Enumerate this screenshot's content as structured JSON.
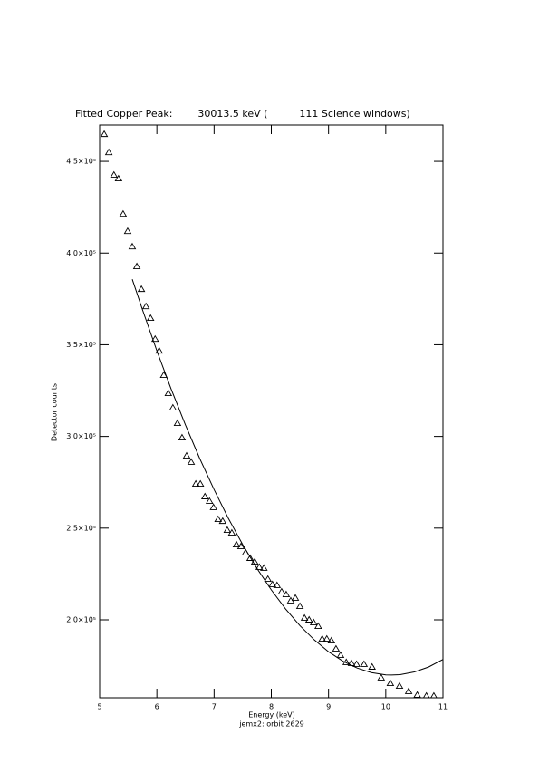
{
  "chart_data": {
    "type": "scatter",
    "title": "Fitted Copper Peak:        30013.5 keV (          111 Science windows)",
    "xlabel": "Energy (keV)",
    "subtitle": "jemx2: orbit 2629",
    "ylabel": "Detector counts",
    "xlim": [
      5,
      11
    ],
    "xticks": [
      5,
      6,
      7,
      8,
      9,
      10,
      11
    ],
    "ylim": [
      157500,
      469800
    ],
    "yticks": [
      {
        "value": 200000,
        "label": "2.0×10⁵"
      },
      {
        "value": 250000,
        "label": "2.5×10⁵"
      },
      {
        "value": 300000,
        "label": "3.0×10⁵"
      },
      {
        "value": 350000,
        "label": "3.5×10⁵"
      },
      {
        "value": 400000,
        "label": "4.0×10⁵"
      },
      {
        "value": 450000,
        "label": "4.5×10⁵"
      }
    ],
    "series": [
      {
        "marker": "triangle",
        "color": "#000000",
        "x": [
          5.08,
          5.16,
          5.25,
          5.33,
          5.41,
          5.49,
          5.57,
          5.65,
          5.73,
          5.81,
          5.89,
          5.97,
          6.04,
          6.12,
          6.2,
          6.28,
          6.36,
          6.44,
          6.52,
          6.6,
          6.68,
          6.76,
          6.84,
          6.92,
          6.99,
          7.07,
          7.15,
          7.23,
          7.31,
          7.39,
          7.47,
          7.55,
          7.63,
          7.71,
          7.79,
          7.87,
          7.94,
          8.02,
          8.1,
          8.18,
          8.26,
          8.34,
          8.42,
          8.5,
          8.58,
          8.66,
          8.74,
          8.82,
          8.89,
          8.97,
          9.05,
          9.13,
          9.21,
          9.31,
          9.4,
          9.49,
          9.62,
          9.76,
          9.92,
          10.08,
          10.24,
          10.4,
          10.55,
          10.71,
          10.84
        ],
        "y": [
          464800,
          454900,
          442600,
          440600,
          421300,
          411900,
          403500,
          392700,
          380300,
          370900,
          364500,
          353100,
          346700,
          333400,
          323500,
          315600,
          307200,
          299300,
          289400,
          286000,
          274100,
          274100,
          267200,
          264700,
          261300,
          254800,
          253800,
          248900,
          247400,
          241000,
          240000,
          236600,
          233600,
          231600,
          228700,
          228200,
          222200,
          219300,
          218800,
          215300,
          213800,
          210400,
          211900,
          207400,
          201000,
          200000,
          198500,
          196500,
          189600,
          189600,
          188600,
          184200,
          180700,
          176800,
          176300,
          175800,
          175800,
          174300,
          168400,
          165400,
          163900,
          161000,
          159000,
          158500,
          158500
        ]
      },
      {
        "marker": "line",
        "color": "#000000",
        "x": [
          5.57,
          5.75,
          6.0,
          6.25,
          6.5,
          6.75,
          7.0,
          7.25,
          7.5,
          7.75,
          8.0,
          8.25,
          8.5,
          8.75,
          9.0,
          9.25,
          9.5,
          9.75,
          10.0,
          10.1,
          10.25,
          10.5,
          10.75,
          11.0
        ],
        "y": [
          385700,
          369000,
          346700,
          325800,
          306200,
          287900,
          271000,
          255300,
          241000,
          228000,
          216300,
          205900,
          196800,
          189100,
          182600,
          177500,
          173700,
          171200,
          170000,
          169900,
          170100,
          171600,
          174300,
          178400
        ]
      }
    ]
  }
}
